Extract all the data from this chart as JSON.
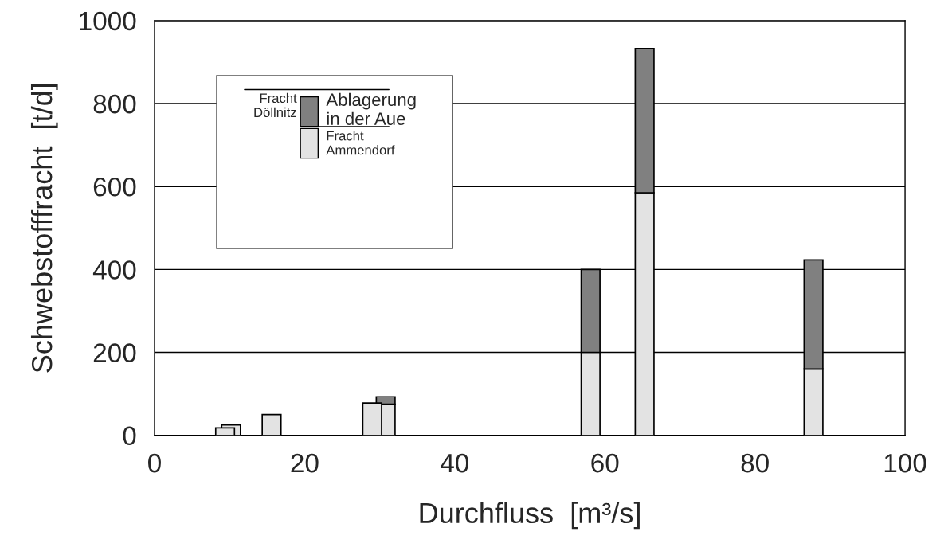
{
  "chart_data": {
    "type": "bar",
    "stacked": true,
    "xlabel": "Durchfluss  [m³/s]",
    "ylabel": "Schwebstofffracht  [t/d]",
    "x": [
      9.4,
      10.2,
      15.6,
      29.0,
      30.8,
      58.1,
      65.3,
      87.8
    ],
    "series": [
      {
        "name": "Fracht\nAmmendorf",
        "color": "#e3e3e3",
        "values": [
          18,
          25,
          50,
          78,
          75,
          200,
          585,
          160
        ]
      },
      {
        "name": "Ablagerung\nin der Aue",
        "color": "#808080",
        "values": [
          null,
          null,
          null,
          null,
          18,
          200,
          348,
          263
        ]
      }
    ],
    "annotations": [
      "Fracht\nDöllnitz"
    ],
    "xlim": [
      0,
      100
    ],
    "xticks": [
      0,
      20,
      40,
      60,
      80,
      100
    ],
    "ylim": [
      0,
      1000
    ],
    "yticks": [
      0,
      200,
      400,
      600,
      800,
      1000
    ],
    "grid": "y",
    "legend": "top left"
  }
}
